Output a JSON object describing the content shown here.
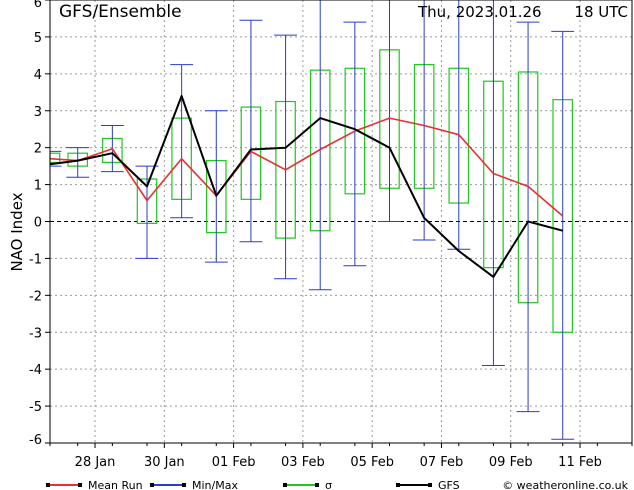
{
  "header": {
    "model": "GFS/Ensemble",
    "run_date": "Thu, 2023.01.26",
    "run_hour": "18 UTC"
  },
  "colors": {
    "mean_run": "#e83030",
    "min_max": "#2a3ccc",
    "sigma": "#1ec81e",
    "gfs": "#000000",
    "grid": "#9a9a9a"
  },
  "legend": [
    {
      "key": "mean_run",
      "label": "Mean Run"
    },
    {
      "key": "min_max",
      "label": "Min/Max"
    },
    {
      "key": "sigma",
      "label": "σ"
    },
    {
      "key": "gfs",
      "label": "GFS"
    }
  ],
  "credit": "© weatheronline.co.uk",
  "chart_data": {
    "type": "line",
    "ylabel": "NAO Index",
    "ylim": [
      -6,
      6
    ],
    "yticks": [
      -6,
      -5,
      -4,
      -3,
      -2,
      -1,
      0,
      1,
      2,
      3,
      4,
      5,
      6
    ],
    "xlim": [
      -0.8,
      16
    ],
    "xticks": [
      {
        "x": 0.5,
        "label": "28 Jan"
      },
      {
        "x": 2.5,
        "label": "30 Jan"
      },
      {
        "x": 4.5,
        "label": "01 Feb"
      },
      {
        "x": 6.5,
        "label": "03 Feb"
      },
      {
        "x": 8.5,
        "label": "05 Feb"
      },
      {
        "x": 10.5,
        "label": "07 Feb"
      },
      {
        "x": 12.5,
        "label": "09 Feb"
      },
      {
        "x": 14.5,
        "label": "11 Feb"
      }
    ],
    "x": [
      -0.8,
      0,
      1,
      2,
      3,
      4,
      5,
      6,
      7,
      8,
      9,
      10,
      11,
      12,
      13,
      14,
      15,
      16
    ],
    "mean_run": [
      1.7,
      1.65,
      1.97,
      0.57,
      1.7,
      0.7,
      1.9,
      1.4,
      1.95,
      2.45,
      2.8,
      2.6,
      2.35,
      1.3,
      0.95,
      0.15,
      null,
      null
    ],
    "gfs": [
      1.55,
      1.65,
      1.85,
      0.95,
      3.4,
      0.7,
      1.95,
      2.0,
      2.8,
      2.5,
      2.0,
      0.1,
      -0.8,
      -1.5,
      0.0,
      -0.25,
      null,
      null
    ],
    "sigma": [
      {
        "x": -0.8,
        "low": 1.6,
        "high": 1.85
      },
      {
        "x": 0,
        "low": 1.5,
        "high": 1.85
      },
      {
        "x": 1,
        "low": 1.6,
        "high": 2.25
      },
      {
        "x": 2,
        "low": -0.05,
        "high": 1.15
      },
      {
        "x": 3,
        "low": 0.6,
        "high": 2.8
      },
      {
        "x": 4,
        "low": -0.3,
        "high": 1.65
      },
      {
        "x": 5,
        "low": 0.6,
        "high": 3.1
      },
      {
        "x": 6,
        "low": -0.45,
        "high": 3.25
      },
      {
        "x": 7,
        "low": -0.25,
        "high": 4.1
      },
      {
        "x": 8,
        "low": 0.75,
        "high": 4.15
      },
      {
        "x": 9,
        "low": 0.9,
        "high": 4.65
      },
      {
        "x": 10,
        "low": 0.9,
        "high": 4.25
      },
      {
        "x": 11,
        "low": 0.5,
        "high": 4.15
      },
      {
        "x": 12,
        "low": -1.25,
        "high": 3.8
      },
      {
        "x": 13,
        "low": -2.2,
        "high": 4.05
      },
      {
        "x": 14,
        "low": -3.0,
        "high": 3.3
      }
    ],
    "min_max": [
      {
        "x": -0.8,
        "min": 1.5,
        "max": 1.9
      },
      {
        "x": 0,
        "min": 1.2,
        "max": 2.0
      },
      {
        "x": 1,
        "min": 1.35,
        "max": 2.6
      },
      {
        "x": 2,
        "min": -1.0,
        "max": 1.5
      },
      {
        "x": 3,
        "min": 0.1,
        "max": 4.25
      },
      {
        "x": 4,
        "min": -1.1,
        "max": 3.0
      },
      {
        "x": 5,
        "min": -0.55,
        "max": 5.45
      },
      {
        "x": 6,
        "min": -1.55,
        "max": 5.05
      },
      {
        "x": 7,
        "min": -1.85,
        "max": 6.0
      },
      {
        "x": 8,
        "min": -1.2,
        "max": 5.4
      },
      {
        "x": 9,
        "min": 0.0,
        "max": 6.0
      },
      {
        "x": 10,
        "min": -0.5,
        "max": 6.0
      },
      {
        "x": 11,
        "min": -0.75,
        "max": 6.0
      },
      {
        "x": 12,
        "min": -3.9,
        "max": 6.0
      },
      {
        "x": 13,
        "min": -5.15,
        "max": 5.4
      },
      {
        "x": 14,
        "min": -5.9,
        "max": 5.15
      }
    ]
  }
}
